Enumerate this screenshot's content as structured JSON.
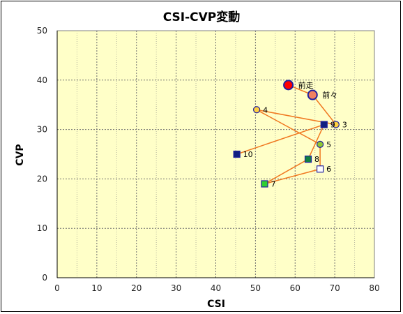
{
  "chart_data": {
    "type": "scatter",
    "title": "CSI-CVP変動",
    "xlabel": "CSI",
    "ylabel": "CVP",
    "xlim": [
      0,
      80
    ],
    "ylim": [
      0,
      50
    ],
    "x_ticks": [
      "0",
      "10",
      "20",
      "30",
      "40",
      "50",
      "60",
      "70",
      "80"
    ],
    "y_ticks": [
      "0",
      "10",
      "20",
      "30",
      "40",
      "50"
    ],
    "grid": true,
    "colors": {
      "plot_background": "#ffffc8",
      "grid": "#707070",
      "connector": "#f07820",
      "marker_border": "#2020a0"
    },
    "points": [
      {
        "label": "前走",
        "x": 58.3,
        "y": 39.0,
        "marker": "circle",
        "fill": "#ff0000",
        "size": "large"
      },
      {
        "label": "前々",
        "x": 64.4,
        "y": 37.0,
        "marker": "circle",
        "fill": "#f08060",
        "size": "large"
      },
      {
        "label": "3",
        "x": 70.3,
        "y": 31.0,
        "marker": "circle",
        "fill": "#ffd040",
        "size": "small"
      },
      {
        "label": "4",
        "x": 50.3,
        "y": 34.0,
        "marker": "circle",
        "fill": "#ffd040",
        "size": "small"
      },
      {
        "label": "5",
        "x": 66.3,
        "y": 27.0,
        "marker": "circle",
        "fill": "#90c830",
        "size": "small"
      },
      {
        "label": "6",
        "x": 66.3,
        "y": 22.0,
        "marker": "square",
        "fill": "#ffffff",
        "size": "small"
      },
      {
        "label": "7",
        "x": 52.3,
        "y": 19.0,
        "marker": "square",
        "fill": "#30d030",
        "size": "small"
      },
      {
        "label": "8",
        "x": 63.3,
        "y": 24.0,
        "marker": "square",
        "fill": "#108040",
        "size": "small"
      },
      {
        "label": "9",
        "x": 67.3,
        "y": 31.0,
        "marker": "square",
        "fill": "#102080",
        "size": "small"
      },
      {
        "label": "10",
        "x": 45.3,
        "y": 25.0,
        "marker": "square",
        "fill": "#102080",
        "size": "small"
      }
    ]
  }
}
